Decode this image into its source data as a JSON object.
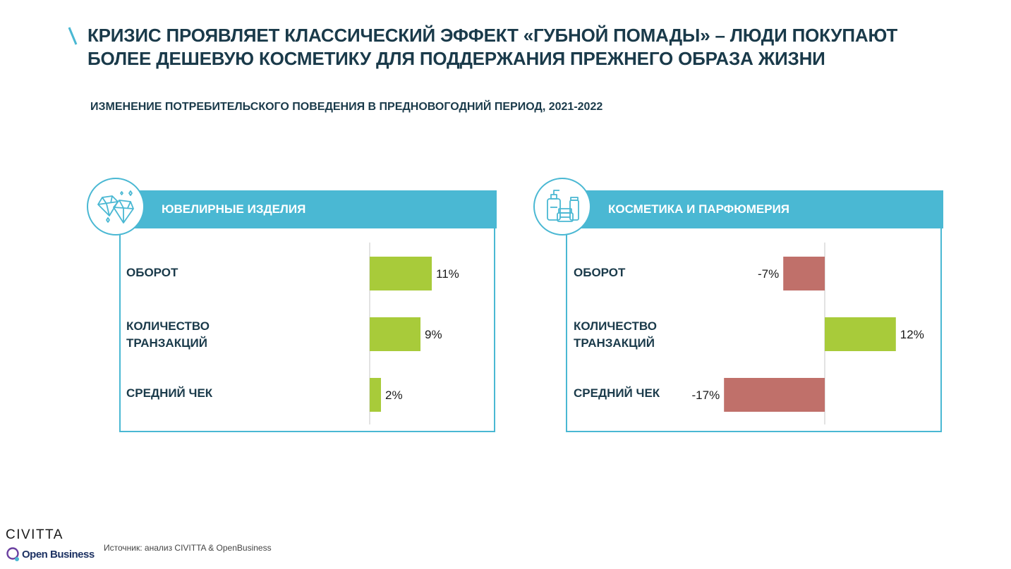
{
  "slide": {
    "title_line1": "КРИЗИС ПРОЯВЛЯЕТ КЛАССИЧЕСКИЙ ЭФФЕКТ «ГУБНОЙ ПОМАДЫ» – ЛЮДИ ПОКУПАЮТ",
    "title_line2": "БОЛЕЕ ДЕШЕВУЮ КОСМЕТИКУ ДЛЯ ПОДДЕРЖАНИЯ ПРЕЖНЕГО ОБРАЗА ЖИЗНИ",
    "subtitle": "ИЗМЕНЕНИЕ ПОТРЕБИТЕЛЬСКОГО ПОВЕДЕНИЯ В ПРЕДНОВОГОДНИЙ ПЕРИОД, 2021-2022",
    "source": "Источник: анализ CIVITTA & OpenBusiness",
    "logo_civitta": "CIVITTA",
    "logo_openbusiness": "Open Business"
  },
  "colors": {
    "accent": "#4ab8d3",
    "positive": "#a8cb3a",
    "negative": "#c0706a",
    "text": "#1a3a4a"
  },
  "chart_data": [
    {
      "type": "bar",
      "orientation": "horizontal",
      "title": "ЮВЕЛИРНЫЕ ИЗДЕЛИЯ",
      "icon": "diamond-icon",
      "categories": [
        "ОБОРОТ",
        "КОЛИЧЕСТВО ТРАНЗАКЦИЙ",
        "СРЕДНИЙ ЧЕК"
      ],
      "category_lines": [
        [
          "ОБОРОТ"
        ],
        [
          "КОЛИЧЕСТВО",
          "ТРАНЗАКЦИЙ"
        ],
        [
          "СРЕДНИЙ ЧЕК"
        ]
      ],
      "values": [
        11,
        9,
        2
      ],
      "labels": [
        "11%",
        "9%",
        "2%"
      ],
      "unit": "%"
    },
    {
      "type": "bar",
      "orientation": "horizontal",
      "title": "КОСМЕТИКА И ПАРФЮМЕРИЯ",
      "icon": "cosmetics-icon",
      "categories": [
        "ОБОРОТ",
        "КОЛИЧЕСТВО ТРАНЗАКЦИЙ",
        "СРЕДНИЙ ЧЕК"
      ],
      "category_lines": [
        [
          "ОБОРОТ"
        ],
        [
          "КОЛИЧЕСТВО",
          "ТРАНЗАКЦИЙ"
        ],
        [
          "СРЕДНИЙ ЧЕК"
        ]
      ],
      "values": [
        -7,
        12,
        -17
      ],
      "labels": [
        "-7%",
        "12%",
        "-17%"
      ],
      "unit": "%"
    }
  ]
}
